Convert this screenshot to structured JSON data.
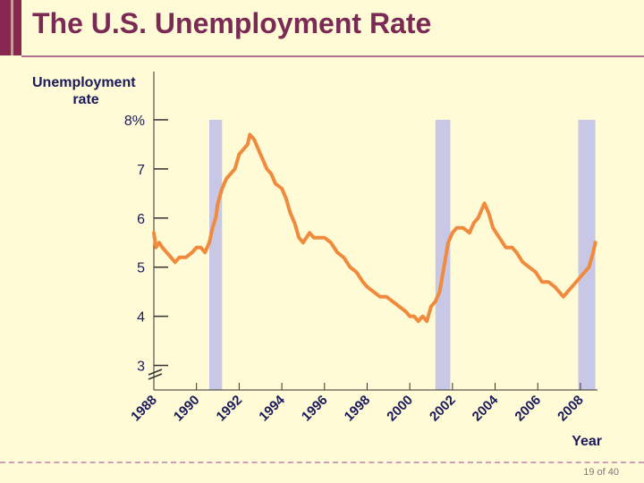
{
  "slide": {
    "title": "The U.S. Unemployment Rate",
    "page_number": "19 of 40"
  },
  "colors": {
    "background": "#fffbd6",
    "title": "#7a2a55",
    "accent": "#8a2750",
    "line": "#f08a3c",
    "recession": "#c8c8e6",
    "axis": "#333333",
    "axis_text": "#1a1a5c"
  },
  "chart_data": {
    "type": "line",
    "ylabel": "Unemployment rate",
    "xlabel": "Year",
    "ylim": [
      2.5,
      8.8
    ],
    "xlim": [
      1988,
      2008.8
    ],
    "yticks": [
      {
        "value": 3,
        "label": "3"
      },
      {
        "value": 4,
        "label": "4"
      },
      {
        "value": 5,
        "label": "5"
      },
      {
        "value": 6,
        "label": "6"
      },
      {
        "value": 7,
        "label": "7"
      },
      {
        "value": 8,
        "label": "8%"
      }
    ],
    "xticks": [
      {
        "value": 1988,
        "label": "1988"
      },
      {
        "value": 1990,
        "label": "1990"
      },
      {
        "value": 1992,
        "label": "1992"
      },
      {
        "value": 1994,
        "label": "1994"
      },
      {
        "value": 1996,
        "label": "1996"
      },
      {
        "value": 1998,
        "label": "1998"
      },
      {
        "value": 2000,
        "label": "2000"
      },
      {
        "value": 2002,
        "label": "2002"
      },
      {
        "value": 2004,
        "label": "2004"
      },
      {
        "value": 2006,
        "label": "2006"
      },
      {
        "value": 2008,
        "label": "2008"
      }
    ],
    "recessions": [
      {
        "start": 1990.6,
        "end": 1991.2
      },
      {
        "start": 2001.2,
        "end": 2001.9
      },
      {
        "start": 2007.9,
        "end": 2008.7
      }
    ],
    "series": [
      {
        "x": [
          1988.0,
          1988.1,
          1988.25,
          1988.4,
          1988.6,
          1988.8,
          1989.0,
          1989.2,
          1989.5,
          1989.8,
          1990.0,
          1990.2,
          1990.4,
          1990.6,
          1990.75,
          1990.9,
          1991.0,
          1991.2,
          1991.4,
          1991.6,
          1991.8,
          1992.0,
          1992.2,
          1992.4,
          1992.5,
          1992.7,
          1992.9,
          1993.1,
          1993.3,
          1993.5,
          1993.7,
          1994.0,
          1994.2,
          1994.4,
          1994.6,
          1994.8,
          1995.0,
          1995.3,
          1995.5,
          1995.7,
          1996.0,
          1996.3,
          1996.6,
          1996.9,
          1997.2,
          1997.5,
          1997.8,
          1998.0,
          1998.3,
          1998.6,
          1998.9,
          1999.2,
          1999.5,
          1999.8,
          2000.0,
          2000.2,
          2000.4,
          2000.6,
          2000.8,
          2001.0,
          2001.2,
          2001.4,
          2001.6,
          2001.8,
          2002.0,
          2002.2,
          2002.5,
          2002.8,
          2003.0,
          2003.2,
          2003.4,
          2003.5,
          2003.7,
          2003.9,
          2004.2,
          2004.5,
          2004.8,
          2005.0,
          2005.3,
          2005.6,
          2005.9,
          2006.2,
          2006.5,
          2006.8,
          2007.0,
          2007.2,
          2007.4,
          2007.6,
          2007.8,
          2008.0,
          2008.2,
          2008.4,
          2008.6,
          2008.7
        ],
        "y": [
          5.7,
          5.4,
          5.5,
          5.4,
          5.3,
          5.2,
          5.1,
          5.2,
          5.2,
          5.3,
          5.4,
          5.4,
          5.3,
          5.5,
          5.8,
          6.0,
          6.3,
          6.6,
          6.8,
          6.9,
          7.0,
          7.3,
          7.4,
          7.5,
          7.7,
          7.6,
          7.4,
          7.2,
          7.0,
          6.9,
          6.7,
          6.6,
          6.4,
          6.1,
          5.9,
          5.6,
          5.5,
          5.7,
          5.6,
          5.6,
          5.6,
          5.5,
          5.3,
          5.2,
          5.0,
          4.9,
          4.7,
          4.6,
          4.5,
          4.4,
          4.4,
          4.3,
          4.2,
          4.1,
          4.0,
          4.0,
          3.9,
          4.0,
          3.9,
          4.2,
          4.3,
          4.5,
          5.0,
          5.5,
          5.7,
          5.8,
          5.8,
          5.7,
          5.9,
          6.0,
          6.2,
          6.3,
          6.1,
          5.8,
          5.6,
          5.4,
          5.4,
          5.3,
          5.1,
          5.0,
          4.9,
          4.7,
          4.7,
          4.6,
          4.5,
          4.4,
          4.5,
          4.6,
          4.7,
          4.8,
          4.9,
          5.0,
          5.3,
          5.5
        ]
      }
    ]
  }
}
